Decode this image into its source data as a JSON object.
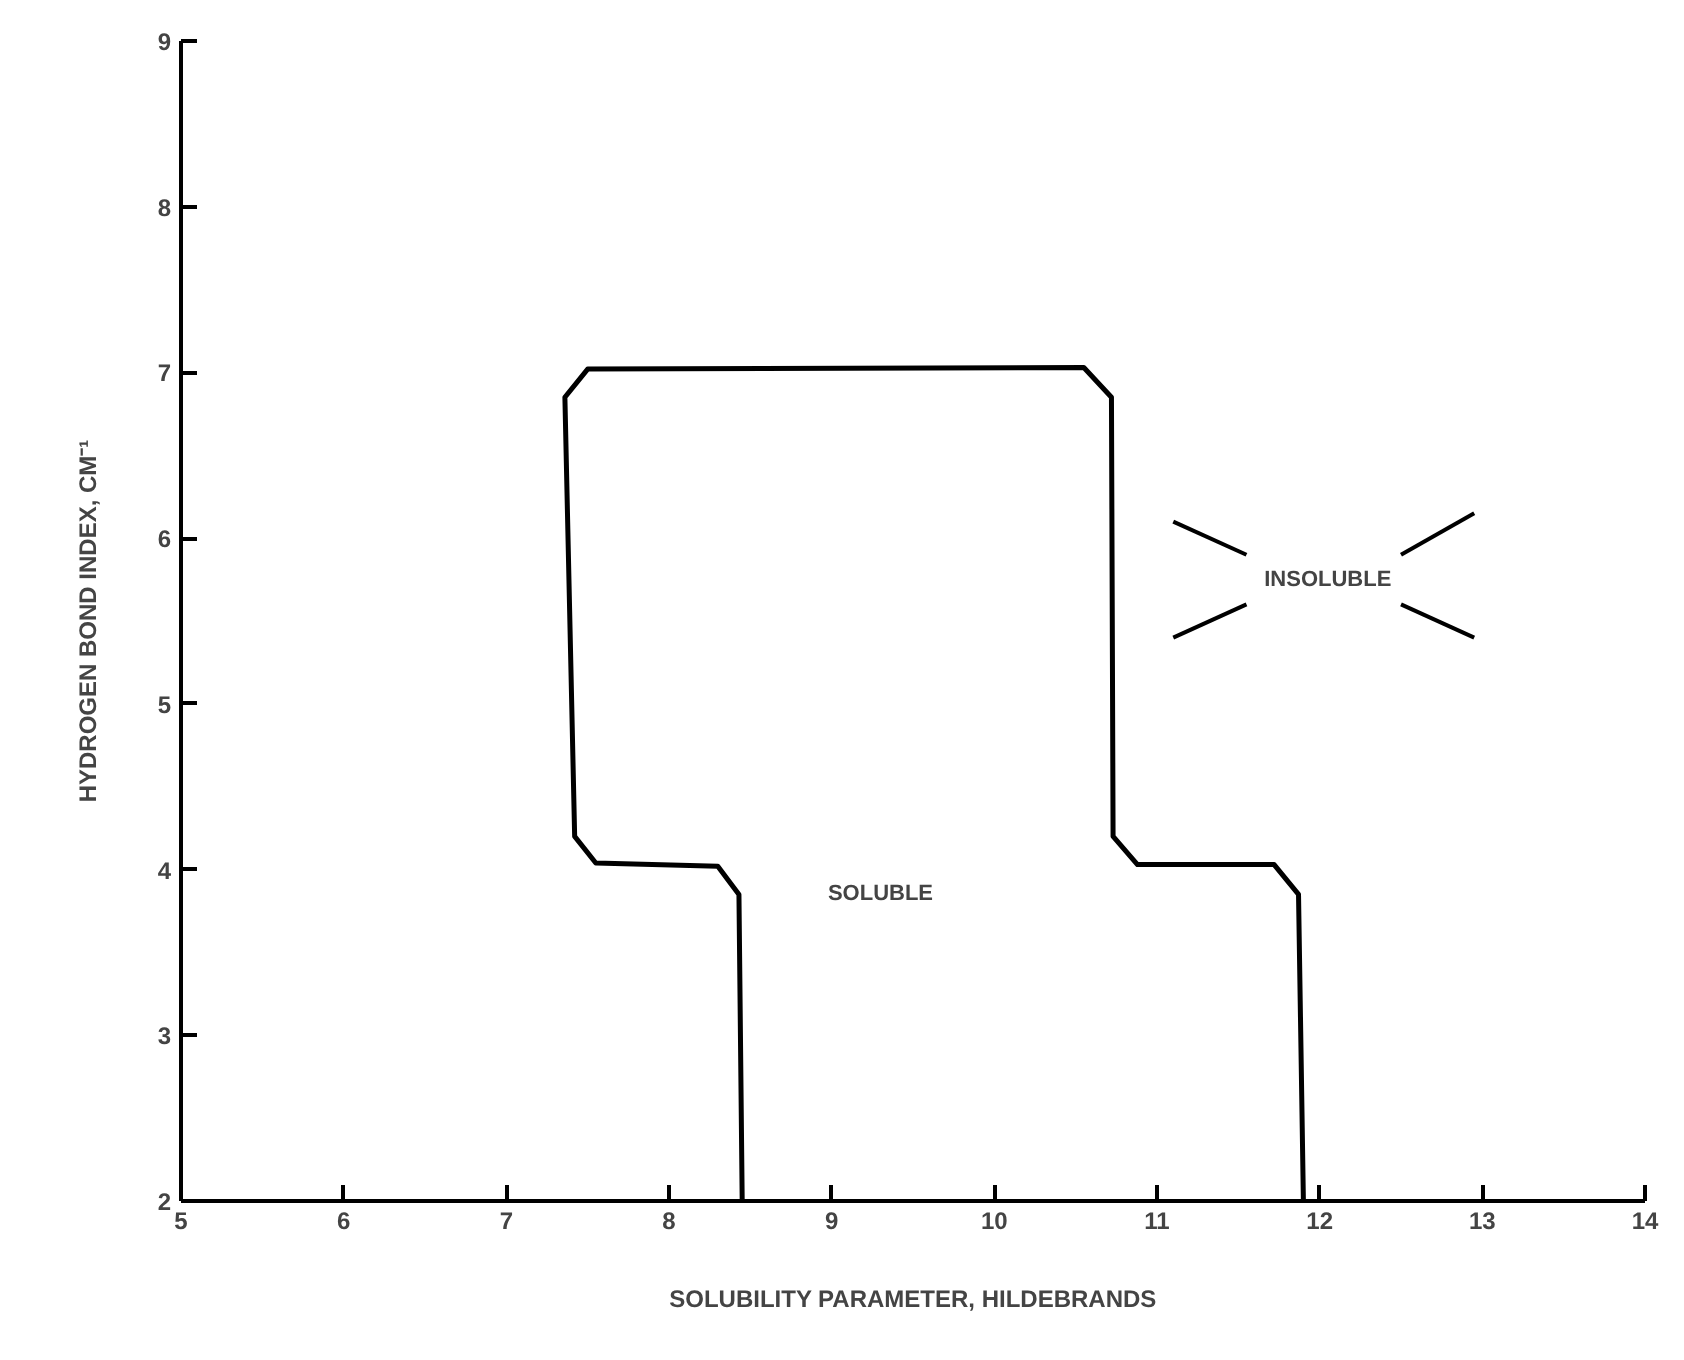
{
  "chart_data": {
    "type": "line",
    "xlabel": "SOLUBILITY PARAMETER, HILDEBRANDS",
    "ylabel": "HYDROGEN BOND INDEX, CM⁻¹",
    "x": [
      8.45,
      8.43,
      8.3,
      7.55,
      7.42,
      7.36,
      7.5,
      10.55,
      10.72,
      10.73,
      10.88,
      11.72,
      11.87,
      11.9
    ],
    "series": [
      {
        "color": "#000000",
        "values": [
          2,
          3.85,
          4.02,
          4.04,
          4.2,
          6.85,
          7.02,
          7.03,
          6.85,
          4.2,
          4.03,
          4.03,
          3.85,
          2
        ]
      }
    ],
    "annotations": [
      "SOLUBLE",
      "INSOLUBLE"
    ],
    "xlim": [
      5,
      14
    ],
    "ylim": [
      2,
      9
    ],
    "xticks": [
      5,
      6,
      7,
      8,
      9,
      10,
      11,
      12,
      13,
      14
    ],
    "yticks": [
      2,
      3,
      4,
      5,
      6,
      7,
      8,
      9
    ],
    "grid": false,
    "marker": "none",
    "line_style": "solid"
  }
}
